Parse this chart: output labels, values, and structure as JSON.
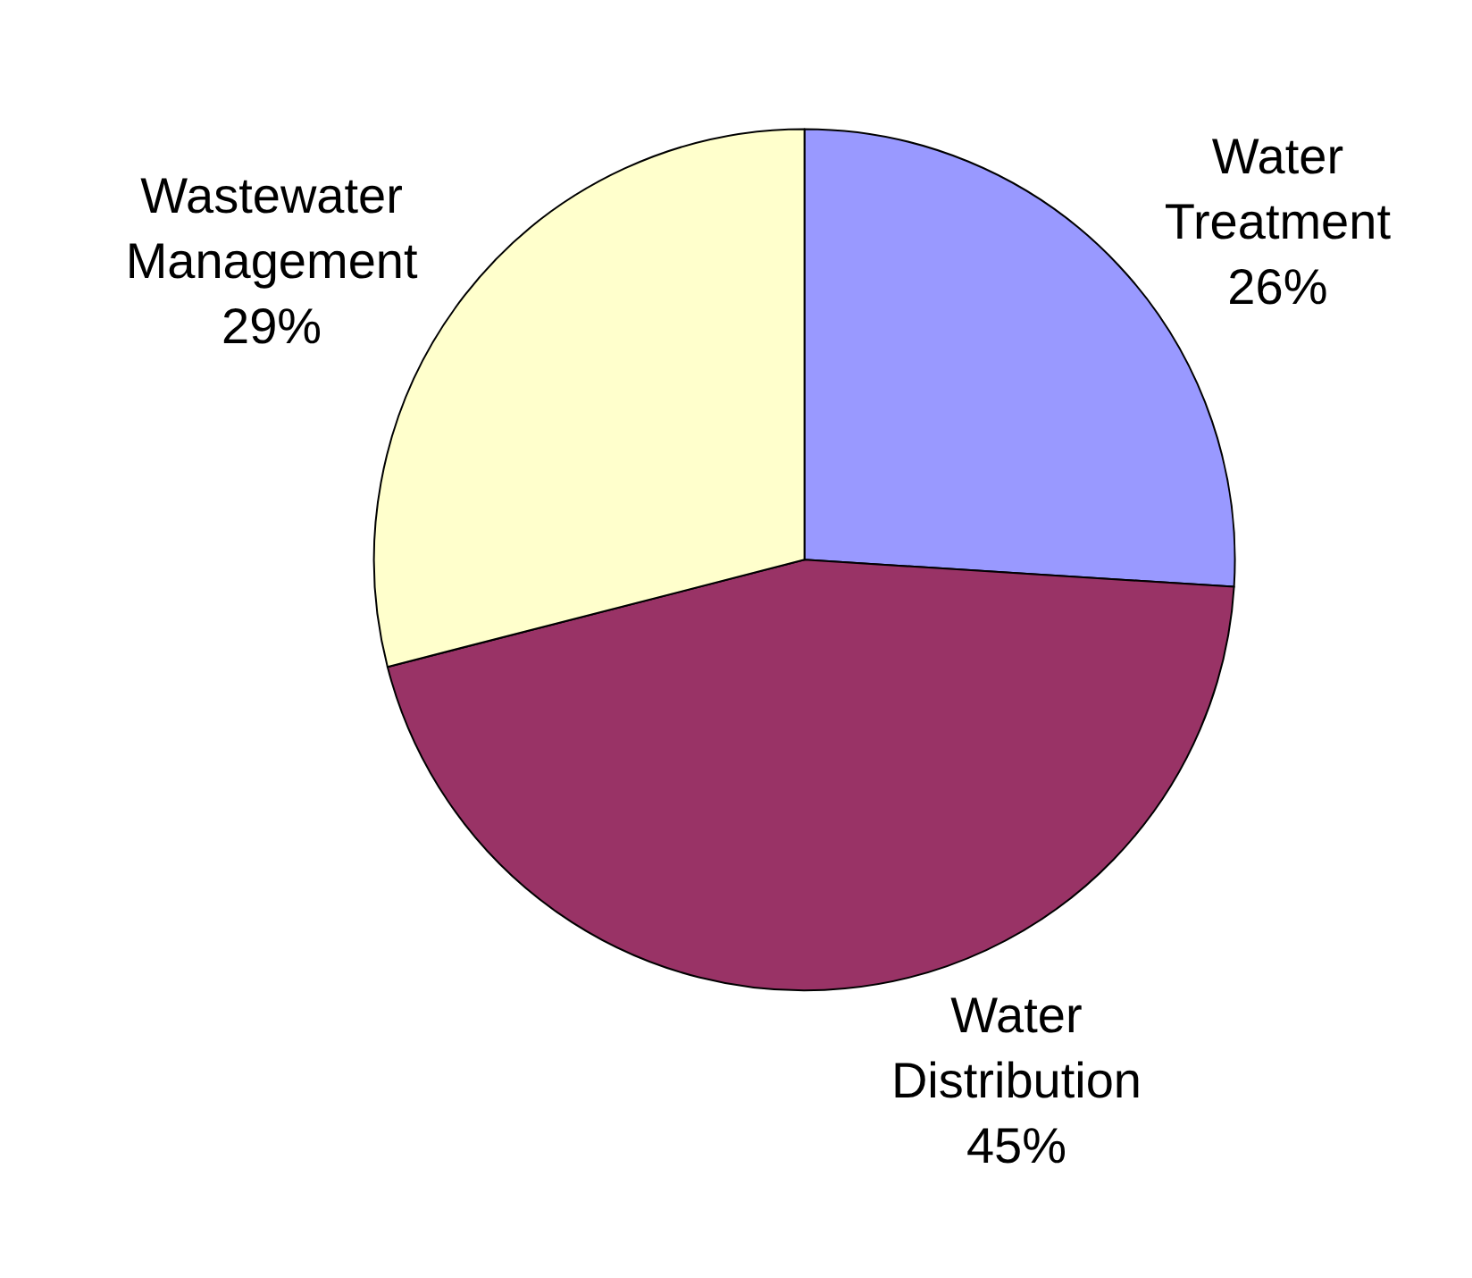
{
  "chart_data": {
    "type": "pie",
    "categories": [
      "Water Treatment",
      "Water Distribution",
      "Wastewater Management"
    ],
    "values": [
      26,
      45,
      29
    ],
    "value_labels": [
      "26%",
      "45%",
      "29%"
    ],
    "colors": [
      "#9999ff",
      "#993366",
      "#ffffcc"
    ],
    "legend": false
  }
}
